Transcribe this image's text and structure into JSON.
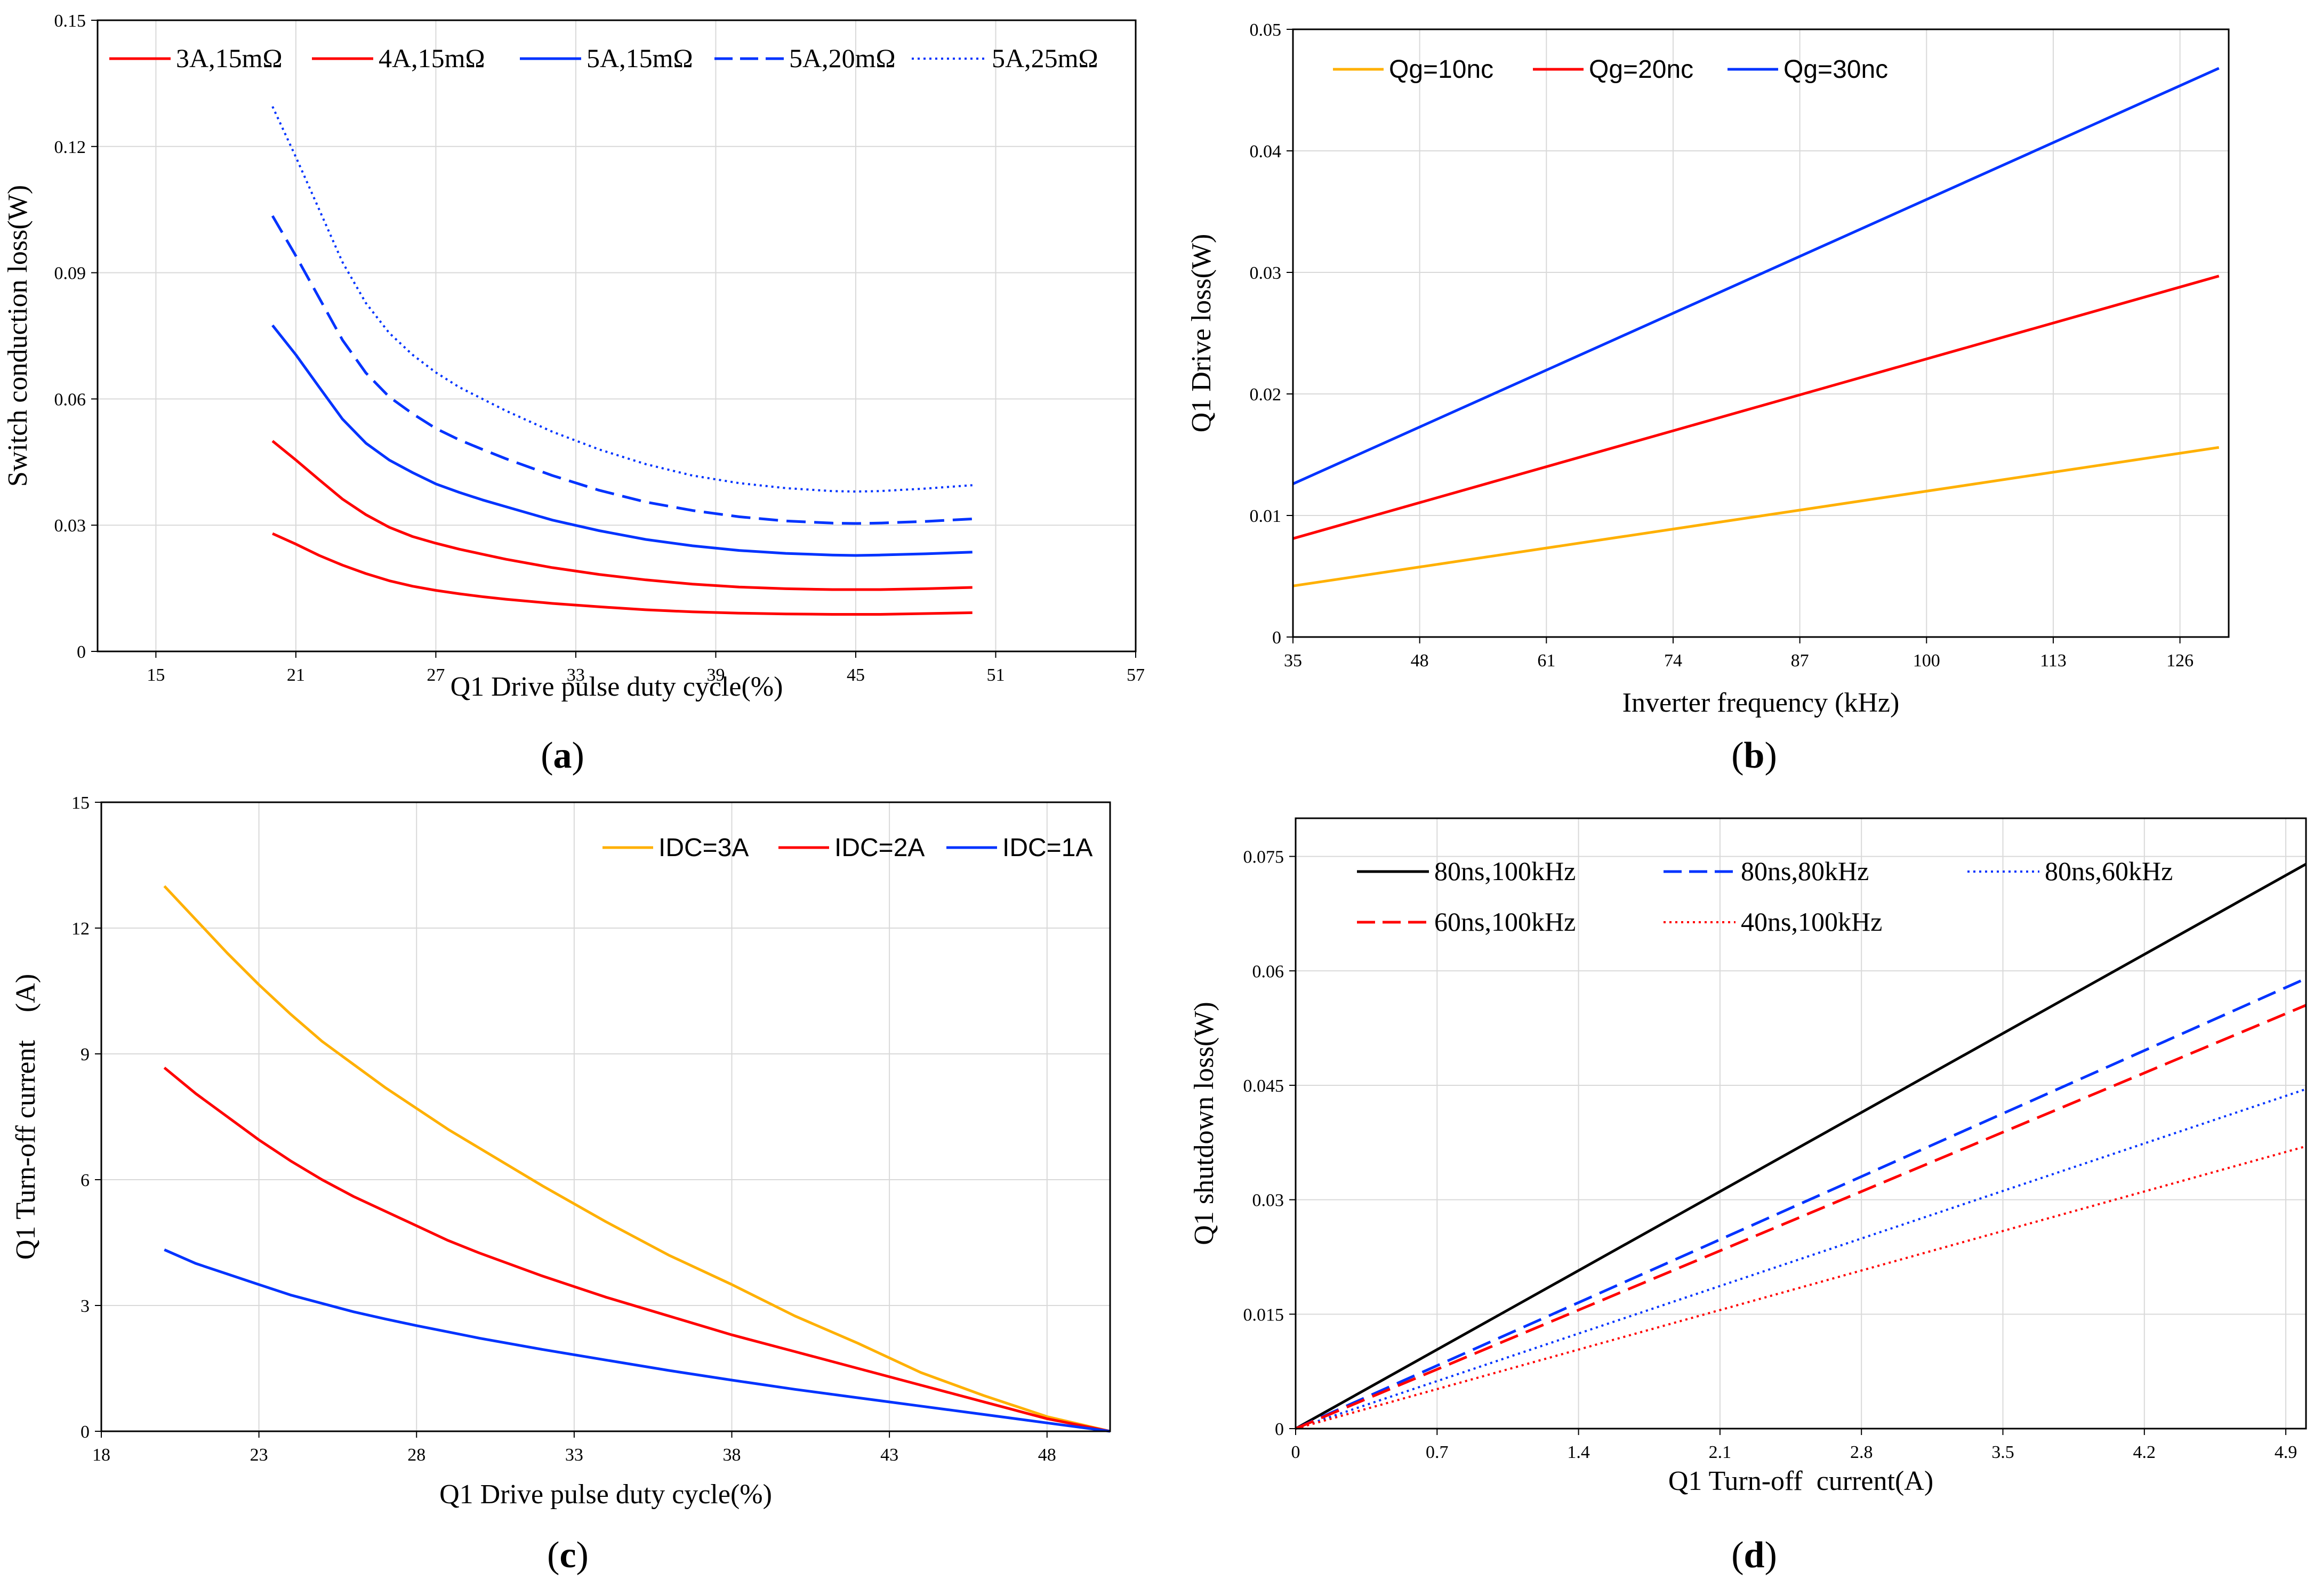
{
  "colors": {
    "red": "#ff0000",
    "blue": "#0033ff",
    "orange": "#ffb000",
    "black": "#000000",
    "grid": "#d9d9d9"
  },
  "chart_data": [
    {
      "id": "a",
      "type": "line",
      "panel_label": "a",
      "title": "",
      "xlabel": "Q1 Drive pulse duty cycle(%)",
      "ylabel": "Switch conduction loss(W)",
      "xlim": [
        12.5,
        57
      ],
      "ylim": [
        0,
        0.15
      ],
      "xticks": [
        15,
        21,
        27,
        33,
        39,
        45,
        51,
        57
      ],
      "yticks": [
        0,
        0.03,
        0.06,
        0.09,
        0.12,
        0.15
      ],
      "ytick_labels": [
        "0",
        "0.03",
        "0.06",
        "0.09",
        "0.12",
        "0.15"
      ],
      "grid": true,
      "legend_position": "top",
      "x": [
        20,
        21,
        22,
        23,
        24,
        25,
        26,
        27,
        28,
        29,
        30,
        32,
        34,
        36,
        38,
        40,
        42,
        44,
        45,
        46,
        48,
        50
      ],
      "series": [
        {
          "name": "3A,15mΩ",
          "color": "red",
          "dash": "solid",
          "values": [
            0.028,
            0.0255,
            0.0228,
            0.0205,
            0.0185,
            0.0168,
            0.0155,
            0.0145,
            0.0137,
            0.013,
            0.0124,
            0.0114,
            0.0106,
            0.0099,
            0.0094,
            0.0091,
            0.0089,
            0.0088,
            0.0088,
            0.0088,
            0.009,
            0.0092
          ]
        },
        {
          "name": "4A,15mΩ",
          "color": "red",
          "dash": "solid",
          "values": [
            0.05,
            0.0455,
            0.0408,
            0.0362,
            0.0325,
            0.0295,
            0.0273,
            0.0257,
            0.0243,
            0.0231,
            0.0219,
            0.0199,
            0.0183,
            0.017,
            0.016,
            0.0153,
            0.0149,
            0.0147,
            0.0147,
            0.0147,
            0.0149,
            0.0152
          ]
        },
        {
          "name": "5A,15mΩ",
          "color": "blue",
          "dash": "solid",
          "values": [
            0.0775,
            0.0705,
            0.0628,
            0.0552,
            0.0495,
            0.0455,
            0.0425,
            0.0398,
            0.0378,
            0.036,
            0.0344,
            0.0312,
            0.0287,
            0.0266,
            0.0251,
            0.024,
            0.0233,
            0.0229,
            0.0228,
            0.0229,
            0.0232,
            0.0236
          ]
        },
        {
          "name": "5A,20mΩ",
          "color": "blue",
          "dash": "dashed",
          "values": [
            0.1035,
            0.094,
            0.084,
            0.074,
            0.0662,
            0.0605,
            0.0565,
            0.053,
            0.0503,
            0.048,
            0.0458,
            0.0418,
            0.0383,
            0.0355,
            0.0335,
            0.032,
            0.031,
            0.0305,
            0.0304,
            0.0305,
            0.0309,
            0.0315
          ]
        },
        {
          "name": "5A,25mΩ",
          "color": "blue",
          "dash": "dotted",
          "values": [
            0.1295,
            0.1175,
            0.105,
            0.0925,
            0.0828,
            0.0757,
            0.0705,
            0.0663,
            0.0628,
            0.06,
            0.0572,
            0.0522,
            0.048,
            0.0445,
            0.0418,
            0.04,
            0.0388,
            0.0381,
            0.038,
            0.0381,
            0.0387,
            0.0395
          ]
        }
      ]
    },
    {
      "id": "b",
      "type": "line",
      "panel_label": "b",
      "title": "",
      "xlabel": "Inverter frequency (kHz)",
      "ylabel": "Q1 Drive loss(W)",
      "xlim": [
        35,
        131
      ],
      "ylim": [
        0,
        0.05
      ],
      "xticks": [
        35,
        48,
        61,
        74,
        87,
        100,
        113,
        126
      ],
      "yticks": [
        0,
        0.01,
        0.02,
        0.03,
        0.04,
        0.05
      ],
      "ytick_labels": [
        "0",
        "0.01",
        "0.02",
        "0.03",
        "0.04",
        "0.05"
      ],
      "grid": true,
      "legend_position": "top-left",
      "x": [
        35,
        130
      ],
      "series": [
        {
          "name": "Qg=10nc",
          "color": "orange",
          "dash": "solid",
          "values": [
            0.0042,
            0.0156
          ]
        },
        {
          "name": "Qg=20nc",
          "color": "red",
          "dash": "solid",
          "values": [
            0.0081,
            0.0297
          ]
        },
        {
          "name": "Qg=30nc",
          "color": "blue",
          "dash": "solid",
          "values": [
            0.0126,
            0.0468
          ]
        }
      ]
    },
    {
      "id": "c",
      "type": "line",
      "panel_label": "c",
      "title": "",
      "xlabel": "Q1 Drive pulse duty cycle(%)",
      "ylabel": "Q1 Turn-off current　(A)",
      "xlim": [
        18,
        50
      ],
      "ylim": [
        0,
        15
      ],
      "xticks": [
        18,
        23,
        28,
        33,
        38,
        43,
        48
      ],
      "yticks": [
        0,
        3,
        6,
        9,
        12,
        15
      ],
      "ytick_labels": [
        "0",
        "3",
        "6",
        "9",
        "12",
        "15"
      ],
      "grid": true,
      "legend_position": "top-right",
      "x": [
        20,
        21,
        22,
        23,
        24,
        25,
        26,
        27,
        28,
        29,
        30,
        32,
        34,
        36,
        38,
        40,
        42,
        44,
        46,
        48,
        50
      ],
      "series": [
        {
          "name": "IDC=3A",
          "color": "orange",
          "dash": "solid",
          "values": [
            13.0,
            12.2,
            11.4,
            10.65,
            9.95,
            9.3,
            8.75,
            8.2,
            7.7,
            7.2,
            6.75,
            5.85,
            5.0,
            4.2,
            3.5,
            2.75,
            2.1,
            1.4,
            0.85,
            0.35,
            0
          ]
        },
        {
          "name": "IDC=2A",
          "color": "red",
          "dash": "solid",
          "values": [
            8.67,
            8.05,
            7.5,
            6.95,
            6.45,
            6.0,
            5.6,
            5.25,
            4.9,
            4.55,
            4.25,
            3.7,
            3.2,
            2.75,
            2.3,
            1.9,
            1.5,
            1.1,
            0.7,
            0.3,
            0
          ]
        },
        {
          "name": "IDC=1A",
          "color": "blue",
          "dash": "solid",
          "values": [
            4.33,
            4.0,
            3.75,
            3.5,
            3.25,
            3.05,
            2.85,
            2.68,
            2.52,
            2.37,
            2.22,
            1.95,
            1.7,
            1.45,
            1.22,
            1.0,
            0.8,
            0.6,
            0.4,
            0.2,
            0
          ]
        }
      ]
    },
    {
      "id": "d",
      "type": "line",
      "panel_label": "d",
      "title": "",
      "xlabel": "Q1 Turn-off  current(A)",
      "ylabel": "Q1 shutdown loss(W)",
      "xlim": [
        0,
        5.0
      ],
      "ylim": [
        0,
        0.08
      ],
      "xticks": [
        0,
        0.7,
        1.4,
        2.1,
        2.8,
        3.5,
        4.2,
        4.9
      ],
      "yticks": [
        0,
        0.015,
        0.03,
        0.045,
        0.06,
        0.075
      ],
      "ytick_labels": [
        "0",
        "0.015",
        "0.03",
        "0.045",
        "0.06",
        "0.075"
      ],
      "grid": true,
      "legend_position": "top",
      "x": [
        0,
        5.0
      ],
      "series": [
        {
          "name": "80ns,100kHz",
          "color": "black",
          "dash": "solid",
          "values": [
            0,
            0.074
          ]
        },
        {
          "name": "80ns,80kHz",
          "color": "blue",
          "dash": "dashed",
          "values": [
            0,
            0.059
          ]
        },
        {
          "name": "80ns,60kHz",
          "color": "blue",
          "dash": "dotted",
          "values": [
            0,
            0.0445
          ]
        },
        {
          "name": "60ns,100kHz",
          "color": "red",
          "dash": "dashed",
          "values": [
            0,
            0.0555
          ]
        },
        {
          "name": "40ns,100kHz",
          "color": "red",
          "dash": "dotted",
          "values": [
            0,
            0.037
          ]
        }
      ]
    }
  ]
}
